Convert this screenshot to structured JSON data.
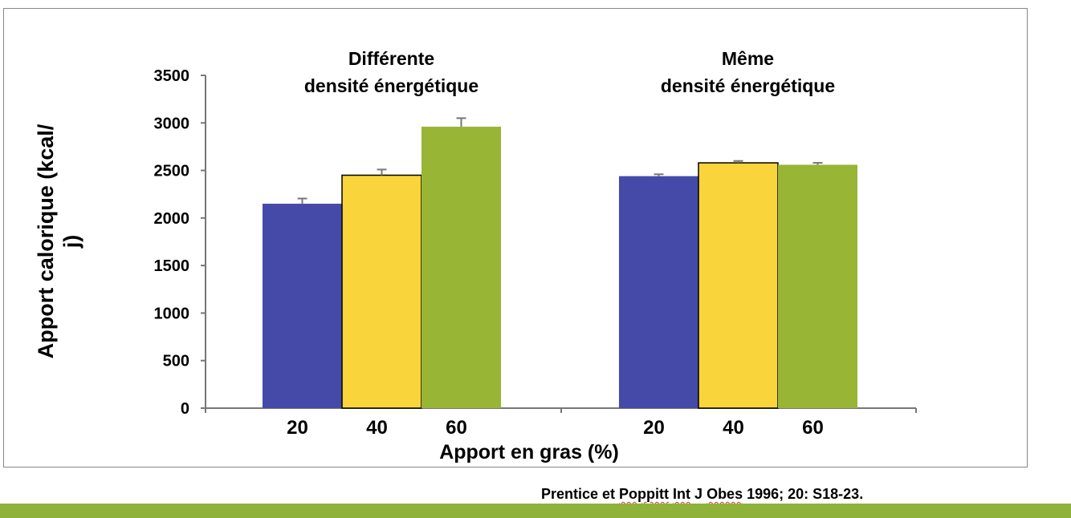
{
  "chart_data": {
    "type": "bar",
    "ylabel": "Apport calorique (kcal/ j)",
    "xlabel": "Apport en gras (%)",
    "ylim": [
      0,
      3500
    ],
    "yticks": [
      "0",
      "500",
      "1000",
      "1500",
      "2000",
      "2500",
      "3000",
      "3500"
    ],
    "grid": false,
    "legend": "none",
    "series_colors": [
      "#454aa8",
      "#f9d43a",
      "#98b536"
    ],
    "groups": [
      {
        "title_line1": "Différente",
        "title_line2": "densité énergétique",
        "categories": [
          "20",
          "40",
          "60"
        ],
        "values": [
          2150,
          2450,
          2960
        ],
        "errors": [
          55,
          60,
          90
        ]
      },
      {
        "title_line1": "Même",
        "title_line2": "densité énergétique",
        "categories": [
          "20",
          "40",
          "60"
        ],
        "values": [
          2440,
          2580,
          2560
        ],
        "errors": [
          20,
          20,
          20
        ]
      }
    ]
  },
  "citation": {
    "prefix": "Prentice et ",
    "author2": "Poppitt",
    "mid1": " ",
    "journal1": "Int",
    "mid2": " J ",
    "journal2": "Obes",
    "suffix": " 1996; 20: S18-23."
  },
  "footer_color": "#8fb23a"
}
